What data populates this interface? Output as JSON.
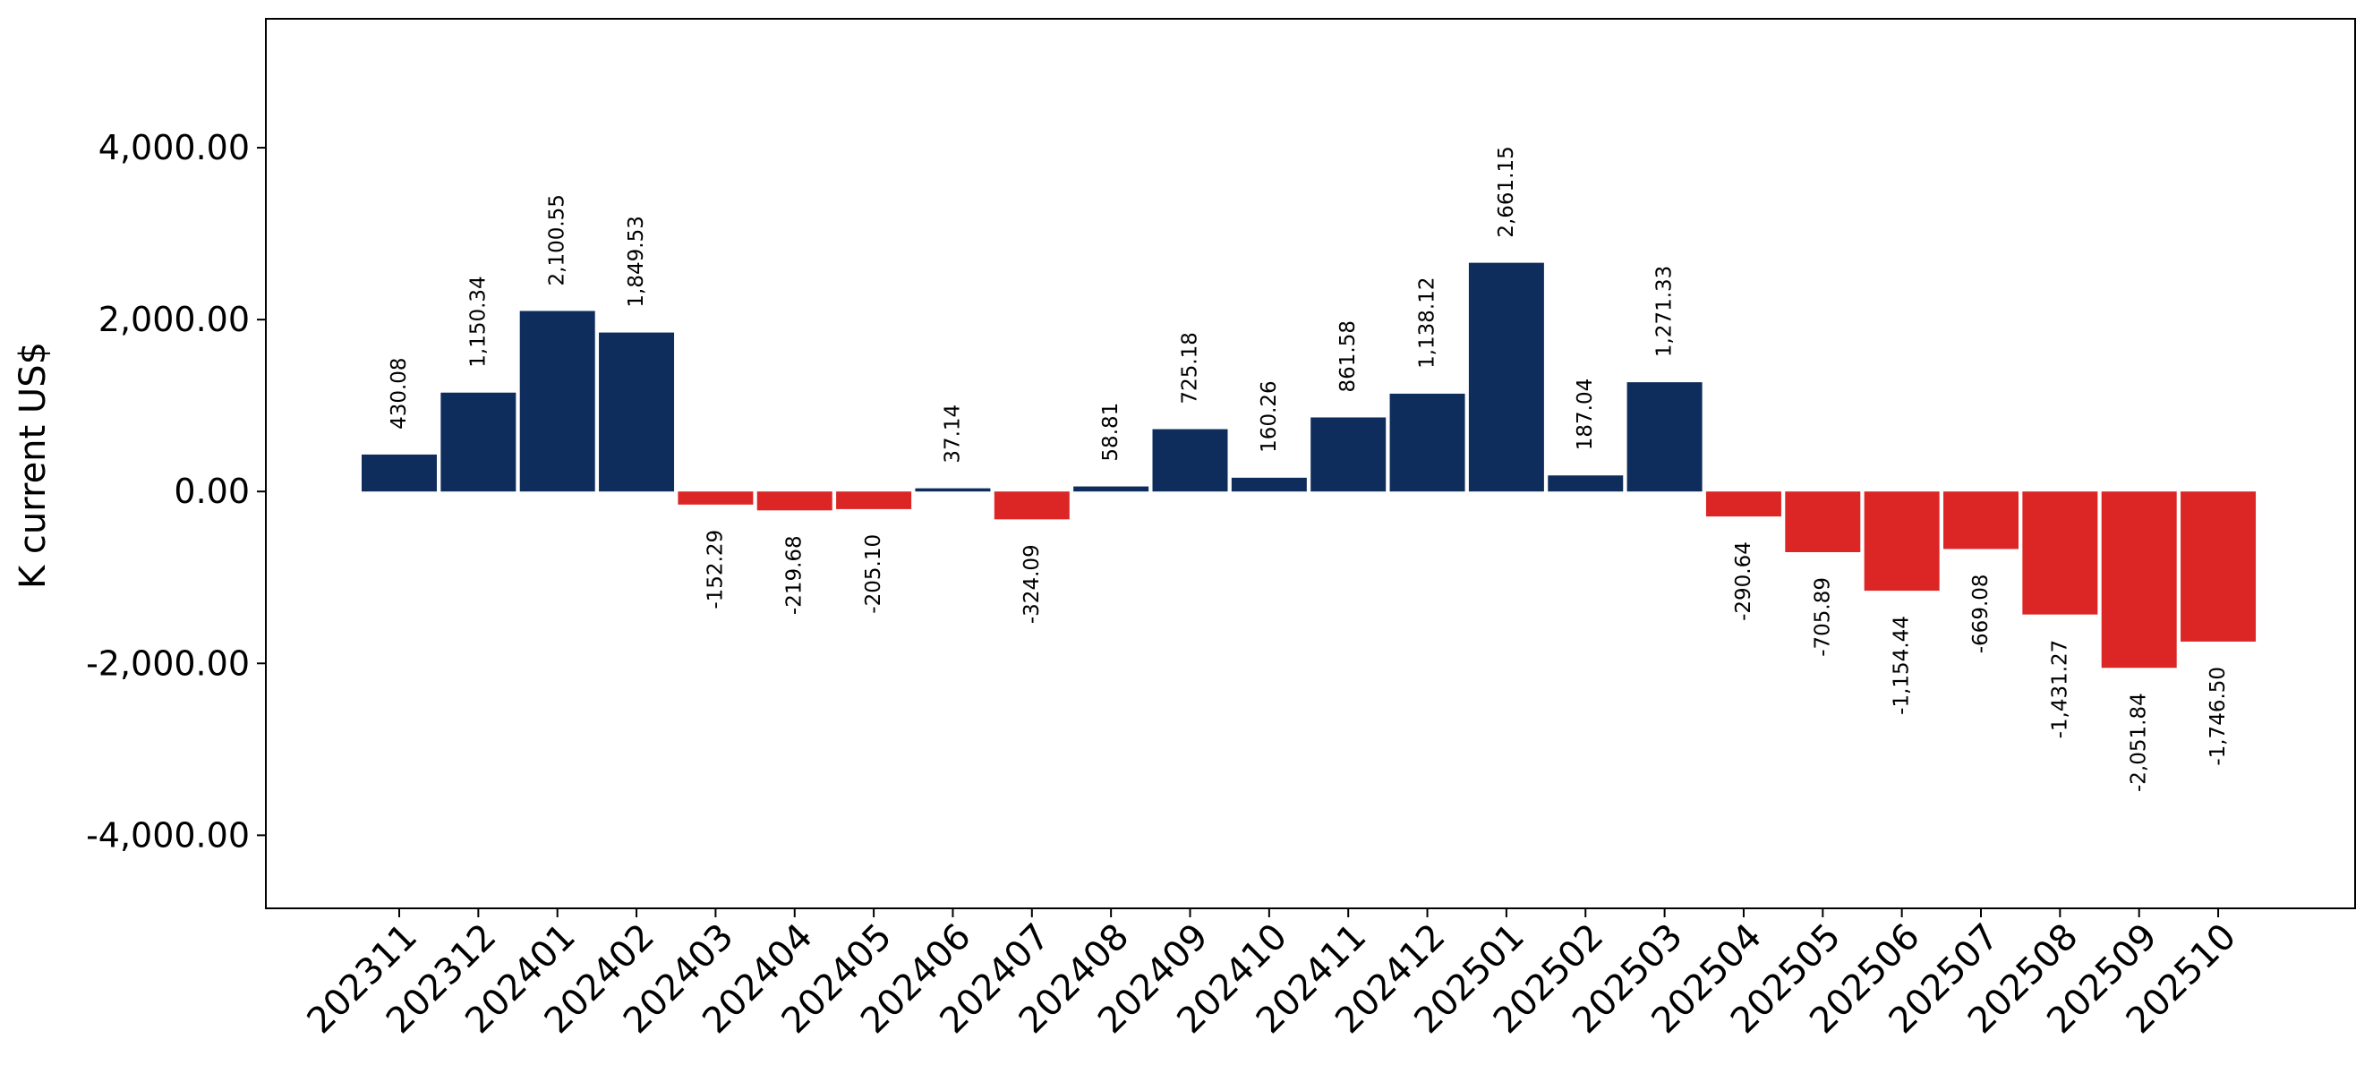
{
  "chart_data": {
    "type": "bar",
    "title": "",
    "xlabel": "",
    "ylabel": "K current US$",
    "ylim": [
      -4850,
      5500
    ],
    "yticks": [
      -4000,
      -2000,
      0,
      2000,
      4000
    ],
    "ytick_labels": [
      "-4,000.00",
      "-2,000.00",
      "0.00",
      "2,000.00",
      "4,000.00"
    ],
    "grid": false,
    "legend": "none",
    "categories": [
      "202311",
      "202312",
      "202401",
      "202402",
      "202403",
      "202404",
      "202405",
      "202406",
      "202407",
      "202408",
      "202409",
      "202410",
      "202411",
      "202412",
      "202501",
      "202502",
      "202503",
      "202504",
      "202505",
      "202506",
      "202507",
      "202508",
      "202509",
      "202510"
    ],
    "values": [
      430.08,
      1150.34,
      2100.55,
      1849.53,
      -152.29,
      -219.68,
      -205.1,
      37.14,
      -324.09,
      58.81,
      725.18,
      160.26,
      861.58,
      1138.12,
      2661.15,
      187.04,
      1271.33,
      -290.64,
      -705.89,
      -1154.44,
      -669.08,
      -1431.27,
      -2051.84,
      -1746.5
    ],
    "data_labels": [
      "430.08",
      "1,150.34",
      "2,100.55",
      "1,849.53",
      "-152.29",
      "-219.68",
      "-205.10",
      "37.14",
      "-324.09",
      "58.81",
      "725.18",
      "160.26",
      "861.58",
      "1,138.12",
      "2,661.15",
      "187.04",
      "1,271.33",
      "-290.64",
      "-705.89",
      "-1,154.44",
      "-669.08",
      "-1,431.27",
      "-2,051.84",
      "-1,746.50"
    ],
    "colors": {
      "positive": "#0f2d5c",
      "negative": "#dc2626"
    }
  }
}
